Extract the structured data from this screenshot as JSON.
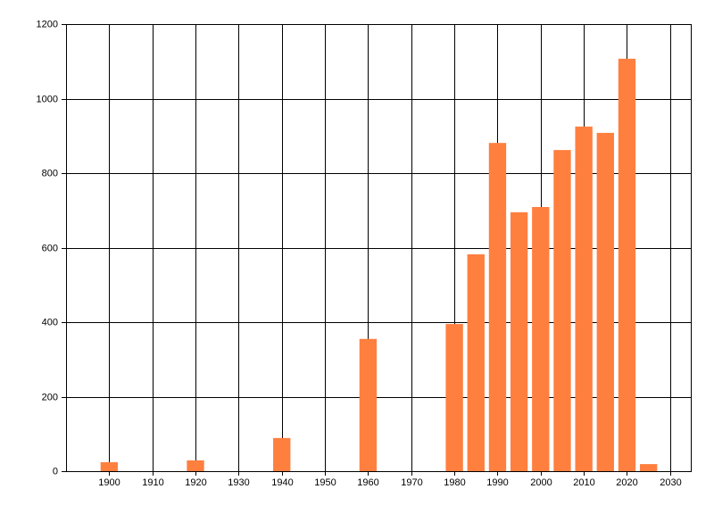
{
  "chart_data": {
    "type": "bar",
    "x": [
      1900,
      1920,
      1940,
      1960,
      1980,
      1985,
      1990,
      1995,
      2000,
      2005,
      2010,
      2015,
      2020,
      2025
    ],
    "values": [
      24,
      29,
      89,
      355,
      395,
      582,
      881,
      695,
      709,
      862,
      925,
      908,
      1107,
      19
    ],
    "color": "#ff7f3f",
    "xlim": [
      1890,
      2035
    ],
    "xticks": [
      1900,
      1910,
      1920,
      1930,
      1940,
      1950,
      1960,
      1970,
      1980,
      1990,
      2000,
      2010,
      2020,
      2030
    ],
    "ylim": [
      0,
      1200
    ],
    "yticks": [
      0,
      200,
      400,
      600,
      800,
      1000,
      1200
    ],
    "grid": true
  }
}
